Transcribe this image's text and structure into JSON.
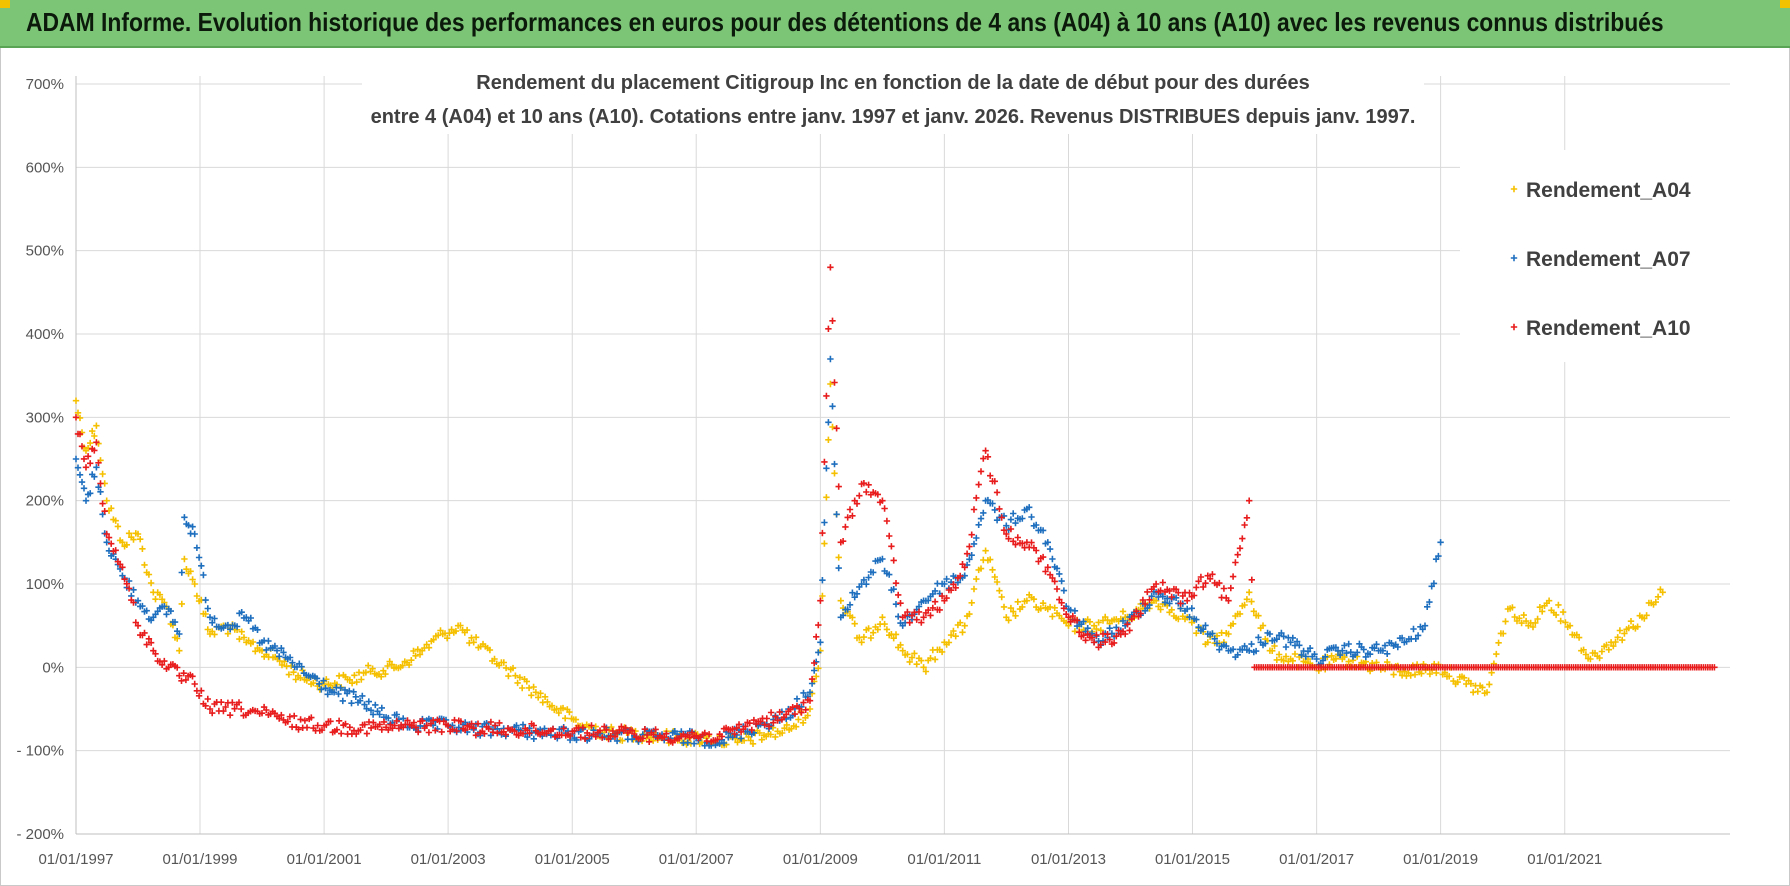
{
  "banner": {
    "title": "ADAM Informe. Evolution historique des performances en euros pour des détentions de 4 ans (A04) à 10 ans (A10) avec les revenus connus distribués"
  },
  "colors": {
    "banner_bg": "#7cc576",
    "A04": "#f5c000",
    "A07": "#1f6fbf",
    "A10": "#e81c1c"
  },
  "chart_data": {
    "type": "scatter",
    "title_line1": "Rendement du placement Citigroup Inc en fonction de la date de début pour des durées",
    "title_line2": "entre 4 (A04) et 10 ans (A10).  Cotations entre janv. 1997 et janv. 2026. Revenus DISTRIBUES  depuis janv. 1997.",
    "xlabel": "",
    "ylabel": "",
    "ylim": [
      -200,
      700
    ],
    "xlim": [
      "1997-01-01",
      "2023-09-01"
    ],
    "y_ticks": [
      "700%",
      "600%",
      "500%",
      "400%",
      "300%",
      "200%",
      "100%",
      "0%",
      "- 100%",
      "- 200%"
    ],
    "y_tick_values": [
      700,
      600,
      500,
      400,
      300,
      200,
      100,
      0,
      -100,
      -200
    ],
    "x_ticks": [
      "01/01/1997",
      "01/01/1999",
      "01/01/2001",
      "01/01/2003",
      "01/01/2005",
      "01/01/2007",
      "01/01/2009",
      "01/01/2011",
      "01/01/2013",
      "01/01/2015",
      "01/01/2017",
      "01/01/2019",
      "01/01/2021"
    ],
    "grid": true,
    "legend_position": "top-right",
    "marker": "+",
    "series": [
      {
        "name": "Rendement_A04",
        "color": "#f5c000",
        "points": [
          [
            "1997-01-01",
            320
          ],
          [
            "1997-03-01",
            260
          ],
          [
            "1997-05-01",
            290
          ],
          [
            "1997-07-01",
            200
          ],
          [
            "1997-10-01",
            150
          ],
          [
            "1998-01-01",
            160
          ],
          [
            "1998-04-01",
            90
          ],
          [
            "1998-07-01",
            70
          ],
          [
            "1998-09-01",
            20
          ],
          [
            "1998-10-01",
            130
          ],
          [
            "1998-12-01",
            100
          ],
          [
            "1999-03-01",
            40
          ],
          [
            "1999-06-01",
            50
          ],
          [
            "1999-10-01",
            30
          ],
          [
            "2000-01-01",
            20
          ],
          [
            "2000-04-01",
            10
          ],
          [
            "2000-08-01",
            -10
          ],
          [
            "2001-01-01",
            -20
          ],
          [
            "2001-06-01",
            -15
          ],
          [
            "2001-10-01",
            -5
          ],
          [
            "2002-03-01",
            0
          ],
          [
            "2002-08-01",
            20
          ],
          [
            "2002-12-01",
            40
          ],
          [
            "2003-03-01",
            50
          ],
          [
            "2003-06-01",
            30
          ],
          [
            "2003-10-01",
            10
          ],
          [
            "2004-02-01",
            -10
          ],
          [
            "2004-06-01",
            -30
          ],
          [
            "2004-10-01",
            -50
          ],
          [
            "2005-03-01",
            -70
          ],
          [
            "2005-09-01",
            -80
          ],
          [
            "2006-03-01",
            -80
          ],
          [
            "2006-09-01",
            -85
          ],
          [
            "2007-03-01",
            -85
          ],
          [
            "2007-09-01",
            -90
          ],
          [
            "2008-03-01",
            -80
          ],
          [
            "2008-07-01",
            -75
          ],
          [
            "2008-11-01",
            -50
          ],
          [
            "2009-01-01",
            20
          ],
          [
            "2009-03-01",
            340
          ],
          [
            "2009-05-01",
            80
          ],
          [
            "2009-09-01",
            30
          ],
          [
            "2010-01-01",
            60
          ],
          [
            "2010-05-01",
            20
          ],
          [
            "2010-09-01",
            0
          ],
          [
            "2011-01-01",
            30
          ],
          [
            "2011-05-01",
            50
          ],
          [
            "2011-09-01",
            140
          ],
          [
            "2012-01-01",
            60
          ],
          [
            "2012-05-01",
            80
          ],
          [
            "2012-09-01",
            70
          ],
          [
            "2013-01-01",
            50
          ],
          [
            "2013-06-01",
            50
          ],
          [
            "2013-12-01",
            60
          ],
          [
            "2014-06-01",
            80
          ],
          [
            "2014-12-01",
            60
          ],
          [
            "2015-04-01",
            30
          ],
          [
            "2015-08-01",
            40
          ],
          [
            "2015-12-01",
            90
          ],
          [
            "2016-04-01",
            20
          ],
          [
            "2016-08-01",
            10
          ],
          [
            "2017-01-01",
            0
          ],
          [
            "2017-06-01",
            10
          ],
          [
            "2018-01-01",
            0
          ],
          [
            "2018-06-01",
            -5
          ],
          [
            "2019-01-01",
            0
          ],
          [
            "2019-06-01",
            -20
          ],
          [
            "2019-10-01",
            -30
          ],
          [
            "2020-02-01",
            70
          ],
          [
            "2020-06-01",
            50
          ],
          [
            "2020-10-01",
            80
          ],
          [
            "2021-02-01",
            50
          ],
          [
            "2021-06-01",
            10
          ],
          [
            "2021-10-01",
            30
          ],
          [
            "2022-04-01",
            60
          ],
          [
            "2022-08-01",
            90
          ]
        ]
      },
      {
        "name": "Rendement_A07",
        "color": "#1f6fbf",
        "points": [
          [
            "1997-01-01",
            250
          ],
          [
            "1997-03-01",
            200
          ],
          [
            "1997-05-01",
            240
          ],
          [
            "1997-07-01",
            150
          ],
          [
            "1997-10-01",
            110
          ],
          [
            "1998-01-01",
            80
          ],
          [
            "1998-04-01",
            60
          ],
          [
            "1998-07-01",
            70
          ],
          [
            "1998-09-01",
            40
          ],
          [
            "1998-10-01",
            180
          ],
          [
            "1998-12-01",
            160
          ],
          [
            "1999-03-01",
            60
          ],
          [
            "1999-06-01",
            50
          ],
          [
            "1999-10-01",
            60
          ],
          [
            "2000-01-01",
            30
          ],
          [
            "2000-06-01",
            10
          ],
          [
            "2000-10-01",
            -10
          ],
          [
            "2001-03-01",
            -30
          ],
          [
            "2001-08-01",
            -40
          ],
          [
            "2002-01-01",
            -60
          ],
          [
            "2002-06-01",
            -70
          ],
          [
            "2003-01-01",
            -70
          ],
          [
            "2003-06-01",
            -75
          ],
          [
            "2004-01-01",
            -75
          ],
          [
            "2004-06-01",
            -78
          ],
          [
            "2005-01-01",
            -80
          ],
          [
            "2005-06-01",
            -80
          ],
          [
            "2006-01-01",
            -82
          ],
          [
            "2006-06-01",
            -83
          ],
          [
            "2007-01-01",
            -85
          ],
          [
            "2007-06-01",
            -87
          ],
          [
            "2008-01-01",
            -70
          ],
          [
            "2008-06-01",
            -60
          ],
          [
            "2008-11-01",
            -30
          ],
          [
            "2009-01-01",
            30
          ],
          [
            "2009-03-01",
            370
          ],
          [
            "2009-05-01",
            60
          ],
          [
            "2009-09-01",
            100
          ],
          [
            "2010-01-01",
            130
          ],
          [
            "2010-05-01",
            50
          ],
          [
            "2010-09-01",
            80
          ],
          [
            "2011-01-01",
            100
          ],
          [
            "2011-05-01",
            110
          ],
          [
            "2011-09-01",
            200
          ],
          [
            "2012-01-01",
            170
          ],
          [
            "2012-05-01",
            190
          ],
          [
            "2012-09-01",
            150
          ],
          [
            "2013-01-01",
            70
          ],
          [
            "2013-06-01",
            30
          ],
          [
            "2013-12-01",
            50
          ],
          [
            "2014-06-01",
            90
          ],
          [
            "2014-12-01",
            70
          ],
          [
            "2015-04-01",
            40
          ],
          [
            "2015-08-01",
            20
          ],
          [
            "2015-12-01",
            20
          ],
          [
            "2016-04-01",
            40
          ],
          [
            "2016-08-01",
            30
          ],
          [
            "2017-01-01",
            10
          ],
          [
            "2017-06-01",
            20
          ],
          [
            "2018-01-01",
            20
          ],
          [
            "2018-06-01",
            30
          ],
          [
            "2018-10-01",
            50
          ],
          [
            "2019-01-01",
            150
          ]
        ]
      },
      {
        "name": "Rendement_A10",
        "color": "#e81c1c",
        "points": [
          [
            "1997-01-01",
            300
          ],
          [
            "1997-03-01",
            240
          ],
          [
            "1997-05-01",
            270
          ],
          [
            "1997-07-01",
            160
          ],
          [
            "1997-10-01",
            120
          ],
          [
            "1998-01-01",
            50
          ],
          [
            "1998-04-01",
            20
          ],
          [
            "1998-07-01",
            0
          ],
          [
            "1998-09-01",
            -10
          ],
          [
            "1998-12-01",
            -20
          ],
          [
            "1999-03-01",
            -50
          ],
          [
            "1999-09-01",
            -50
          ],
          [
            "2000-01-01",
            -55
          ],
          [
            "2000-06-01",
            -65
          ],
          [
            "2001-01-01",
            -70
          ],
          [
            "2001-06-01",
            -72
          ],
          [
            "2002-01-01",
            -72
          ],
          [
            "2002-06-01",
            -70
          ],
          [
            "2003-01-01",
            -70
          ],
          [
            "2003-06-01",
            -73
          ],
          [
            "2004-01-01",
            -75
          ],
          [
            "2004-06-01",
            -76
          ],
          [
            "2005-01-01",
            -77
          ],
          [
            "2005-06-01",
            -78
          ],
          [
            "2006-01-01",
            -80
          ],
          [
            "2006-06-01",
            -82
          ],
          [
            "2007-01-01",
            -82
          ],
          [
            "2007-06-01",
            -83
          ],
          [
            "2008-01-01",
            -65
          ],
          [
            "2008-06-01",
            -60
          ],
          [
            "2008-11-01",
            -40
          ],
          [
            "2009-01-01",
            80
          ],
          [
            "2009-03-01",
            480
          ],
          [
            "2009-05-01",
            150
          ],
          [
            "2009-09-01",
            220
          ],
          [
            "2010-01-01",
            200
          ],
          [
            "2010-05-01",
            60
          ],
          [
            "2010-09-01",
            60
          ],
          [
            "2011-01-01",
            80
          ],
          [
            "2011-05-01",
            120
          ],
          [
            "2011-09-01",
            260
          ],
          [
            "2012-01-01",
            160
          ],
          [
            "2012-05-01",
            150
          ],
          [
            "2012-09-01",
            120
          ],
          [
            "2013-01-01",
            60
          ],
          [
            "2013-06-01",
            30
          ],
          [
            "2013-12-01",
            40
          ],
          [
            "2014-06-01",
            100
          ],
          [
            "2014-12-01",
            80
          ],
          [
            "2015-04-01",
            110
          ],
          [
            "2015-08-01",
            80
          ],
          [
            "2015-12-01",
            200
          ],
          [
            "2016-01-01",
            0
          ],
          [
            "2017-01-01",
            0
          ],
          [
            "2018-01-01",
            0
          ],
          [
            "2019-01-01",
            0
          ],
          [
            "2020-01-01",
            0
          ],
          [
            "2021-01-01",
            0
          ],
          [
            "2022-01-01",
            0
          ],
          [
            "2023-06-01",
            0
          ]
        ]
      }
    ]
  }
}
